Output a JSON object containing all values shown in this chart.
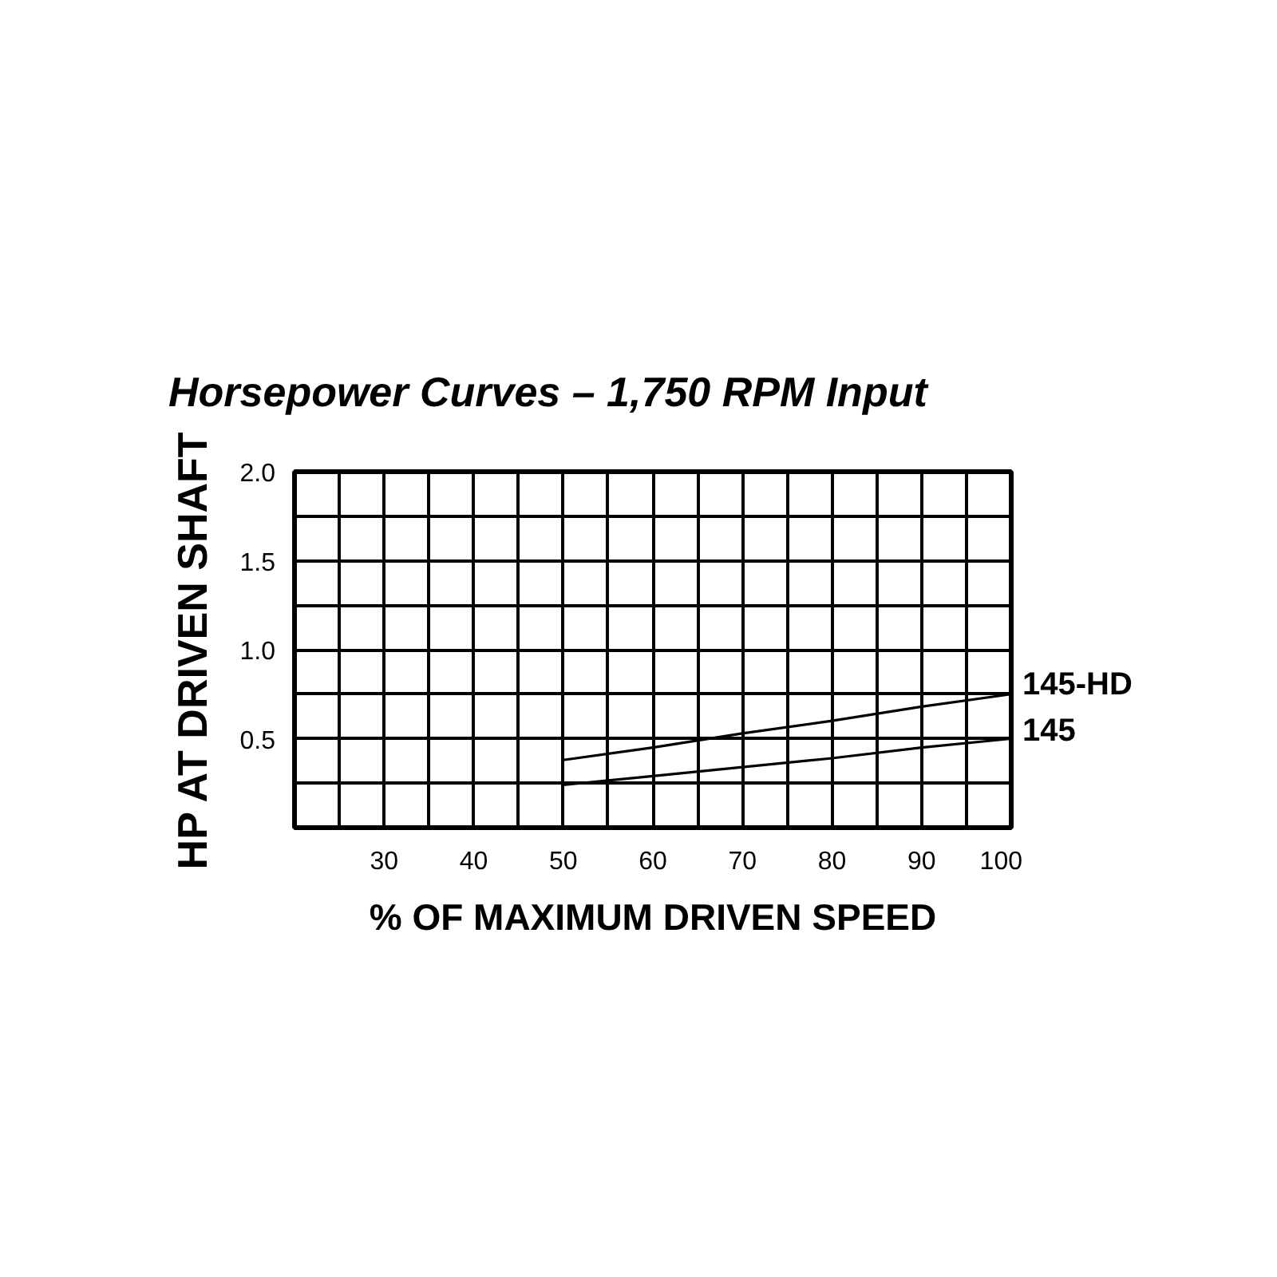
{
  "chart_data": {
    "type": "line",
    "title": "Horsepower Curves – 1,750 RPM Input",
    "xlabel": "% OF MAXIMUM DRIVEN SPEED",
    "ylabel": "HP AT DRIVEN SHAFT",
    "xlim": [
      20,
      100
    ],
    "ylim": [
      0,
      2
    ],
    "xticks": [
      {
        "value": 20,
        "label": null
      },
      {
        "value": 25,
        "label": null
      },
      30,
      {
        "value": 35,
        "label": null
      },
      40,
      {
        "value": 45,
        "label": null
      },
      50,
      {
        "value": 55,
        "label": null
      },
      60,
      {
        "value": 65,
        "label": null
      },
      70,
      {
        "value": 75,
        "label": null
      },
      80,
      {
        "value": 85,
        "label": null
      },
      90,
      {
        "value": 95,
        "label": null
      },
      100
    ],
    "yticks": [
      {
        "value": 0,
        "label": null
      },
      {
        "value": 0.25,
        "label": null
      },
      0.5,
      {
        "value": 0.75,
        "label": null
      },
      {
        "value": 1,
        "label": "1.0"
      },
      {
        "value": 1.25,
        "label": null
      },
      1.5,
      {
        "value": 1.75,
        "label": null
      },
      {
        "value": 2,
        "label": "2.0"
      }
    ],
    "grid": true,
    "x": [
      50,
      60,
      70,
      80,
      90,
      100
    ],
    "series": [
      {
        "name": "145-HD",
        "color": "#000000",
        "values": [
          0.38,
          0.45,
          0.53,
          0.6,
          0.68,
          0.75
        ]
      },
      {
        "name": "145",
        "color": "#000000",
        "values": [
          0.24,
          0.29,
          0.34,
          0.39,
          0.45,
          0.5
        ]
      }
    ]
  }
}
